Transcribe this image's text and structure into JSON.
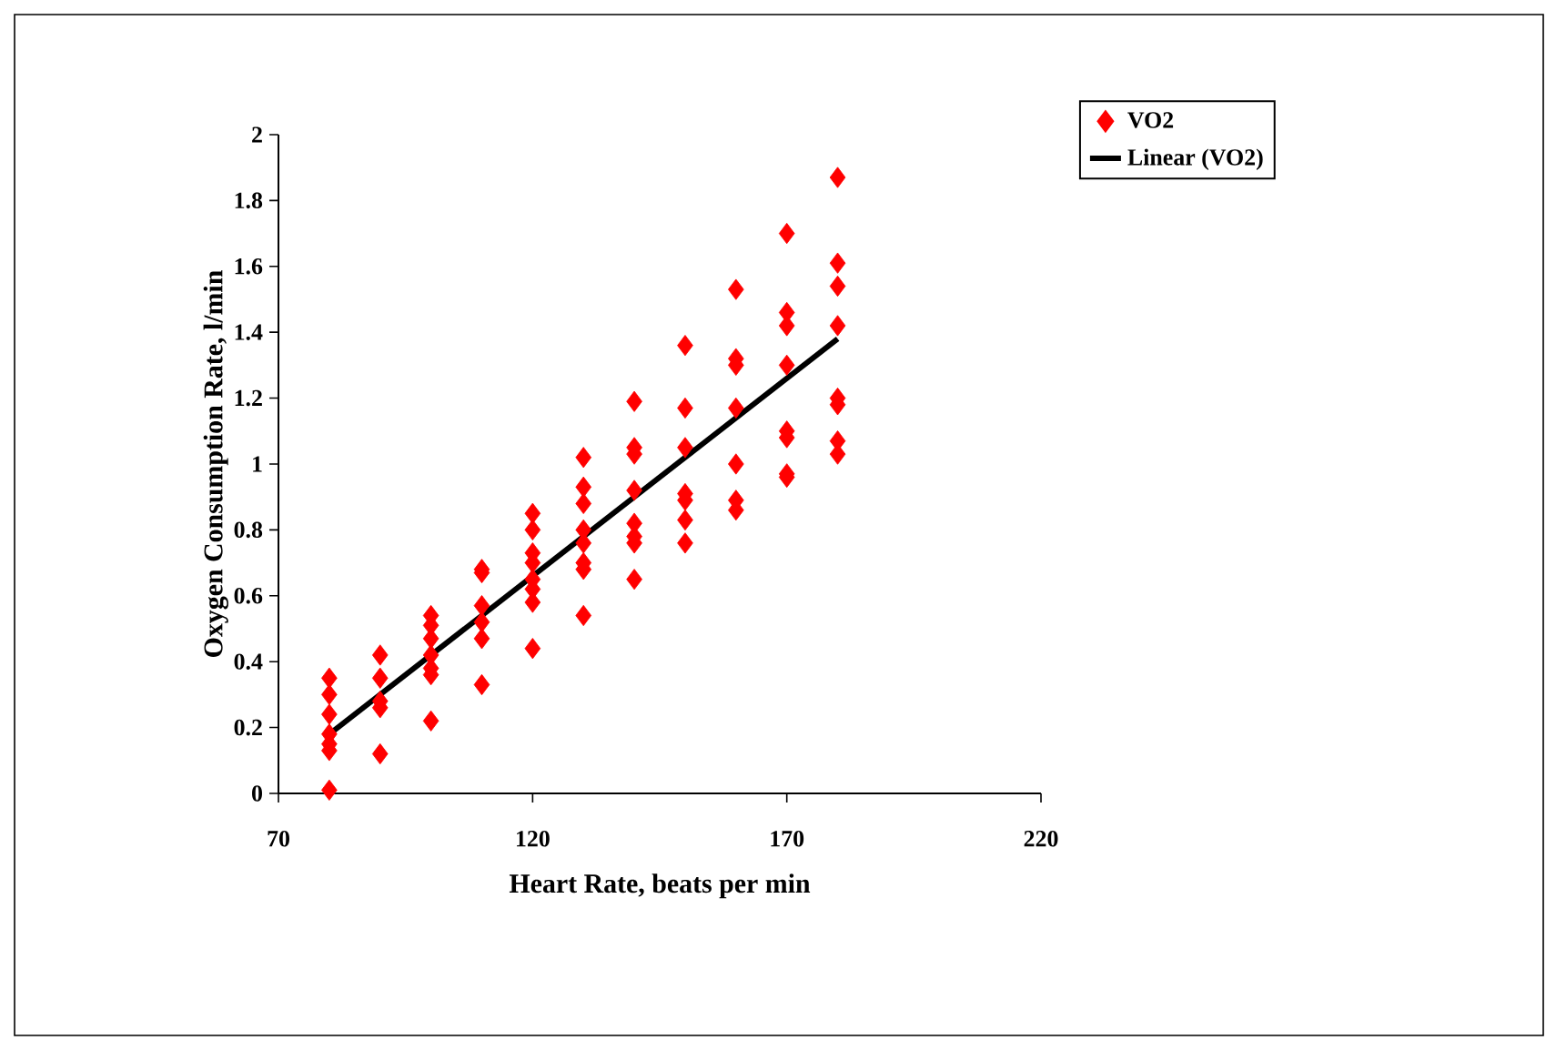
{
  "chart_data": {
    "type": "scatter",
    "xlabel": "Heart Rate, beats per min",
    "ylabel": "Oxygen Consumption Rate, l/min",
    "xlim": [
      70,
      220
    ],
    "xticks": [
      70,
      120,
      170,
      220
    ],
    "ylim": [
      0,
      2
    ],
    "yticks": [
      0,
      0.2,
      0.4,
      0.6,
      0.8,
      1,
      1.2,
      1.4,
      1.6,
      1.8,
      2
    ],
    "grid": false,
    "legend": "top right",
    "marker": "diamond",
    "series": [
      {
        "name": "VO2",
        "color": "#ff0000",
        "x": [
          80,
          80,
          80,
          80,
          80,
          80,
          80,
          90,
          90,
          90,
          90,
          90,
          100,
          100,
          100,
          100,
          100,
          100,
          100,
          110,
          110,
          110,
          110,
          110,
          110,
          120,
          120,
          120,
          120,
          120,
          120,
          120,
          120,
          130,
          130,
          130,
          130,
          130,
          130,
          130,
          130,
          140,
          140,
          140,
          140,
          140,
          140,
          140,
          140,
          150,
          150,
          150,
          150,
          150,
          150,
          150,
          160,
          160,
          160,
          160,
          160,
          160,
          160,
          170,
          170,
          170,
          170,
          170,
          170,
          170,
          170,
          180,
          180,
          180,
          180,
          180,
          180,
          180,
          180
        ],
        "values": [
          0.35,
          0.3,
          0.24,
          0.18,
          0.15,
          0.13,
          0.01,
          0.42,
          0.35,
          0.28,
          0.26,
          0.12,
          0.54,
          0.51,
          0.47,
          0.42,
          0.38,
          0.36,
          0.22,
          0.68,
          0.67,
          0.57,
          0.52,
          0.47,
          0.33,
          0.85,
          0.8,
          0.73,
          0.7,
          0.65,
          0.62,
          0.58,
          0.44,
          1.02,
          0.93,
          0.88,
          0.8,
          0.76,
          0.7,
          0.68,
          0.54,
          1.19,
          1.05,
          1.03,
          0.92,
          0.82,
          0.78,
          0.76,
          0.65,
          1.36,
          1.17,
          1.05,
          0.91,
          0.89,
          0.83,
          0.76,
          1.53,
          1.32,
          1.3,
          1.17,
          1.0,
          0.89,
          0.86,
          1.7,
          1.46,
          1.42,
          1.3,
          1.1,
          1.08,
          0.97,
          0.96,
          1.87,
          1.61,
          1.54,
          1.42,
          1.2,
          1.18,
          1.07,
          1.03
        ]
      },
      {
        "name": "Linear (VO2)",
        "color": "#000000",
        "type": "line",
        "marker": "none",
        "line_style": "solid",
        "x": [
          80,
          180
        ],
        "values": [
          0.18,
          1.38
        ]
      }
    ]
  }
}
